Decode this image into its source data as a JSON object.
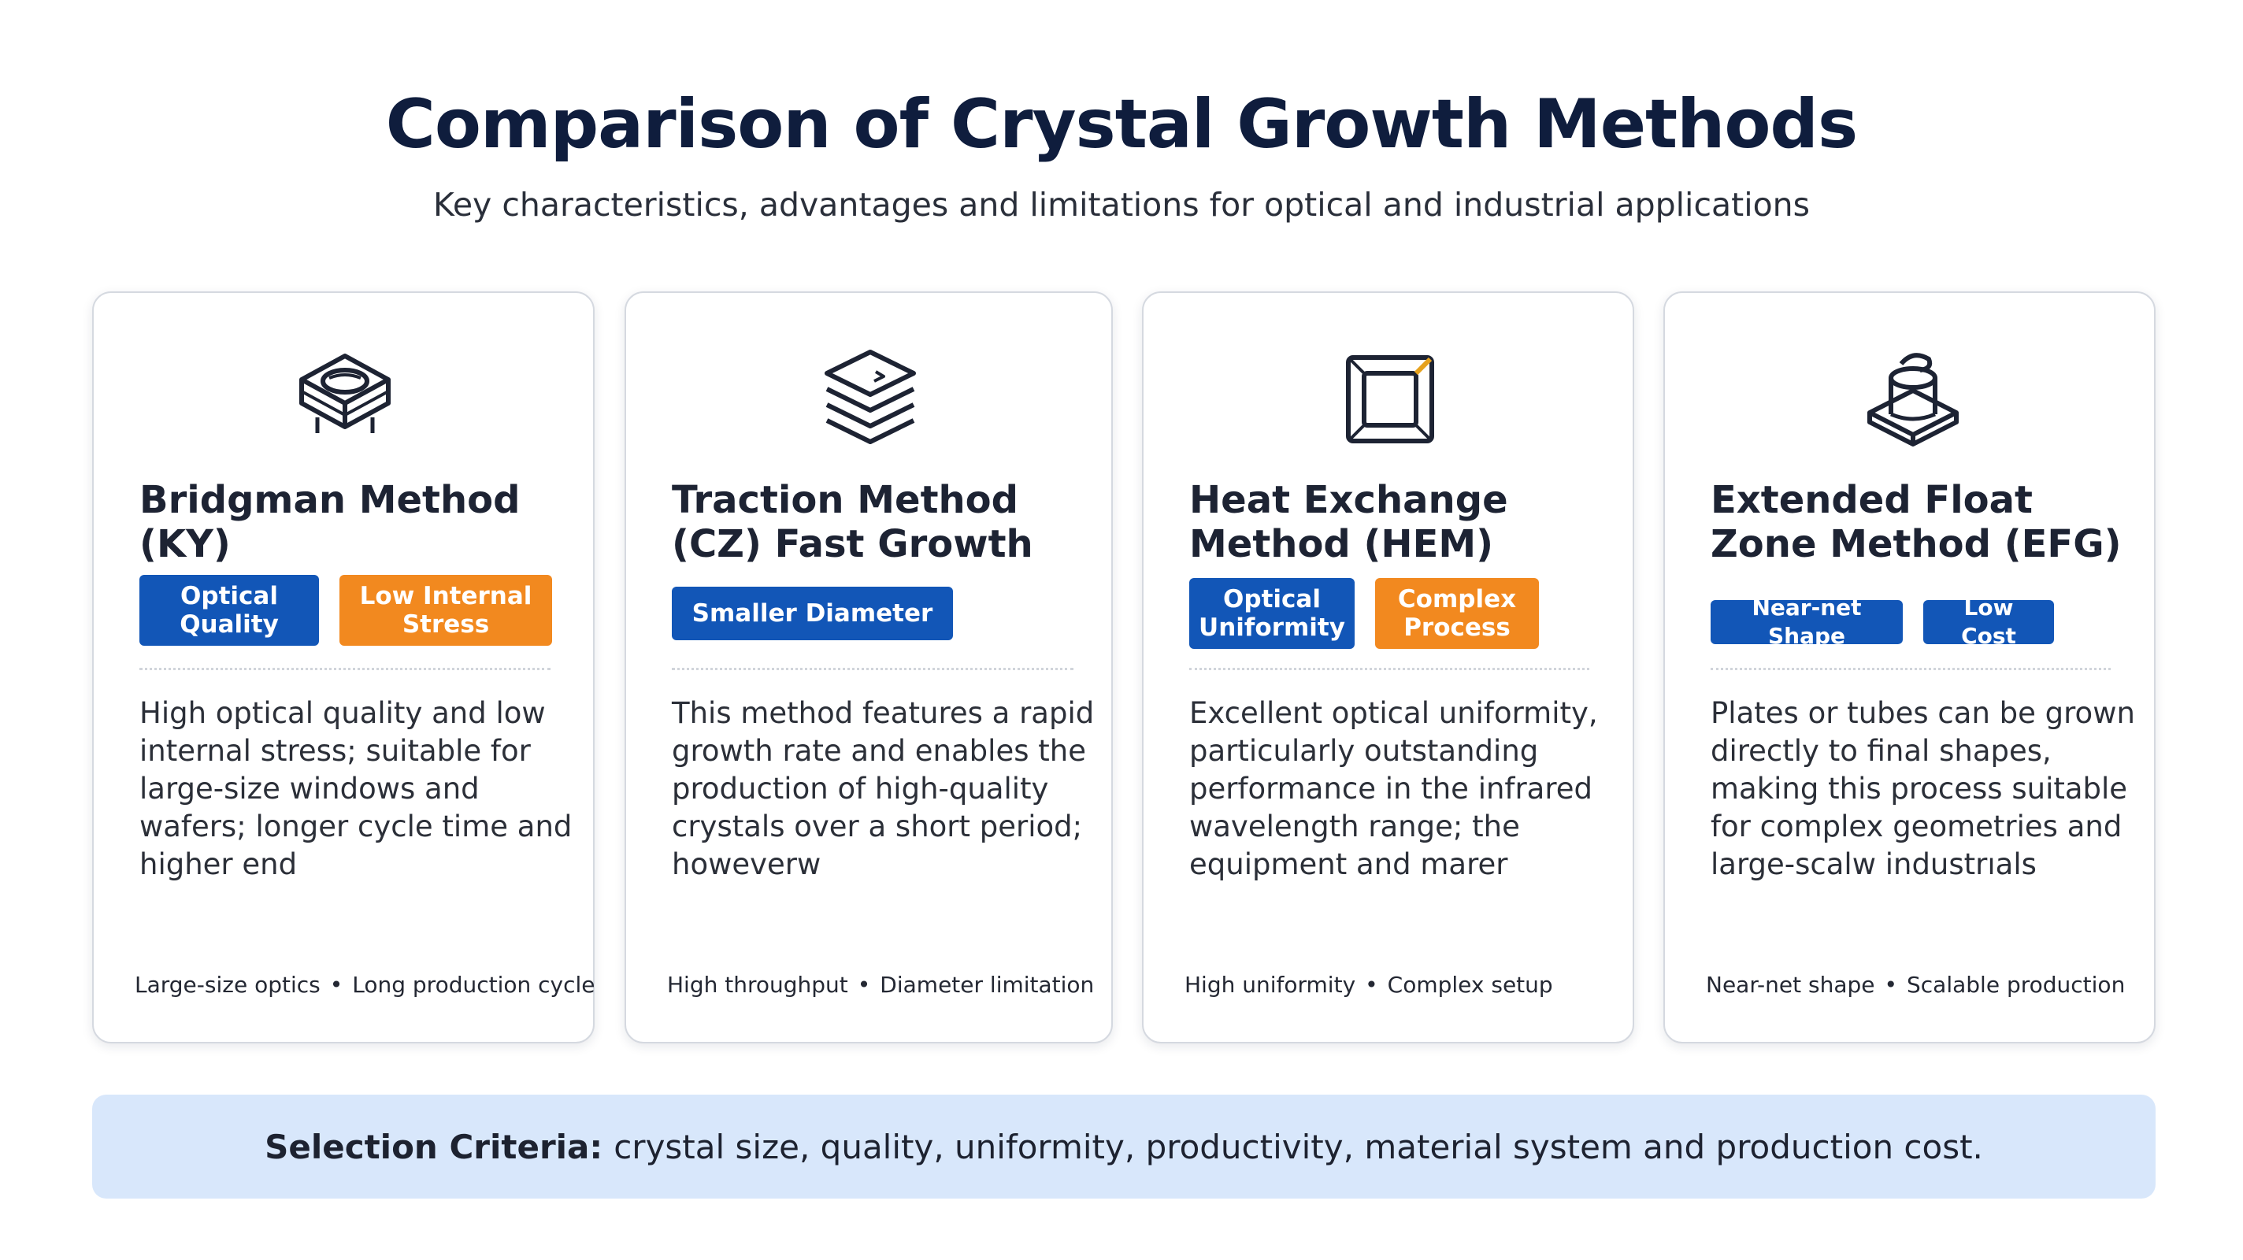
{
  "header": {
    "title": "Comparison of Crystal Growth Methods",
    "subtitle": "Key characteristics, advantages and limitations for optical and industrial applications"
  },
  "cards": [
    {
      "icon": "crystal-box-icon",
      "name": "Bridgman Method (KY)",
      "tags": [
        {
          "label": "Optical Quality",
          "color": "#1256b7"
        },
        {
          "label": "Low Internal Stress",
          "color": "#f2891f"
        }
      ],
      "description": "High optical quality and low internal stress; suitable for large-size windows and wafers; longer cycle time and higher end",
      "footer": [
        "Large-size optics",
        "Long production cycle"
      ]
    },
    {
      "icon": "stacked-layers-icon",
      "name": "Traction Method (CZ) Fast Growth",
      "tags": [
        {
          "label": "Smaller Diameter",
          "color": "#1256b7"
        }
      ],
      "description": "This method features a rapid growth rate and enables the production of high-quality crystals  over a short period; howeverw",
      "footer": [
        "High throughput",
        "Diameter limitation"
      ]
    },
    {
      "icon": "heat-exchanger-icon",
      "name": "Heat Exchange Method (HEM)",
      "tags": [
        {
          "label": "Optical Uniformity",
          "color": "#1256b7"
        },
        {
          "label": "Complex Process",
          "color": "#f2891f"
        }
      ],
      "description": "Excellent optical uniformity, particularly outstanding performance in the infrared wavelength range; the equipment and marer",
      "footer": [
        "High uniformity",
        "Complex setup"
      ]
    },
    {
      "icon": "cylinder-die-icon",
      "name": "Extended Float Zone Method (EFG)",
      "tags": [
        {
          "label": "Near-net Shape",
          "color": "#1256b7"
        },
        {
          "label": "Low Cost",
          "color": "#1256b7"
        }
      ],
      "description": "Plates or tubes can be grown directly to final shapes, making this process suitable for complex geometries and large-scalw industrıals",
      "footer": [
        "Near-net shape",
        "Scalable production"
      ]
    }
  ],
  "footer": {
    "label": "Selection Criteria:",
    "text": "crystal size, quality, uniformity, productivity, material system and production cost."
  },
  "colors": {
    "title": "#0f1d3d",
    "tag_blue": "#1256b7",
    "tag_orange": "#f2891f",
    "criteria_bg": "#d8e7fb"
  }
}
